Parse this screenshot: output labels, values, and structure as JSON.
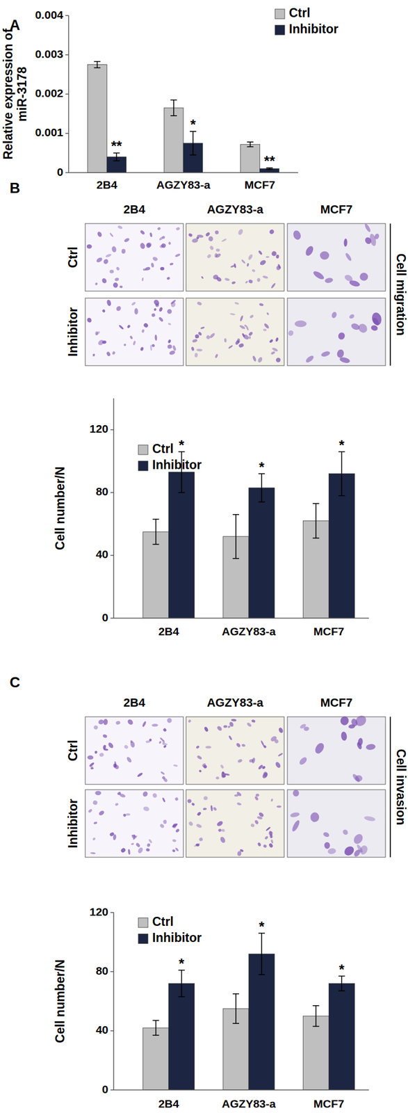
{
  "chart_data": [
    {
      "type": "bar",
      "ylabel": "Relative expression of miR-3178",
      "categories": [
        "2B4",
        "AGZY83-a",
        "MCF7"
      ],
      "series": [
        {
          "name": "Ctrl",
          "color": "#bfbfbf",
          "values": [
            0.00275,
            0.00165,
            0.00072
          ],
          "errors": [
            8e-05,
            0.0002,
            6e-05
          ]
        },
        {
          "name": "Inhibitor",
          "color": "#1c2541",
          "values": [
            0.0004,
            0.00075,
            0.0001
          ],
          "errors": [
            0.0001,
            0.0003,
            2e-05
          ],
          "annotations": [
            "**",
            "*",
            "**"
          ]
        }
      ],
      "ylim": [
        0,
        0.004
      ],
      "yticks": [
        0,
        0.001,
        0.002,
        0.003,
        0.004
      ],
      "grid": false,
      "legend": "top-right"
    },
    {
      "type": "bar",
      "ylabel": "Cell number/N",
      "categories": [
        "2B4",
        "AGZY83-a",
        "MCF7"
      ],
      "series": [
        {
          "name": "Ctrl",
          "color": "#bfbfbf",
          "values": [
            55,
            52,
            62
          ],
          "errors": [
            8,
            14,
            11
          ]
        },
        {
          "name": "Inhibitor",
          "color": "#1c2541",
          "values": [
            93,
            83,
            92
          ],
          "errors": [
            13,
            9,
            14
          ],
          "annotations": [
            "*",
            "*",
            "*"
          ]
        }
      ],
      "ylim": [
        0,
        140
      ],
      "yticks": [
        0,
        40,
        80,
        120
      ],
      "grid": false,
      "legend": "top-left"
    },
    {
      "type": "bar",
      "ylabel": "Cell number/N",
      "categories": [
        "2B4",
        "AGZY83-a",
        "MCF7"
      ],
      "series": [
        {
          "name": "Ctrl",
          "color": "#bfbfbf",
          "values": [
            42,
            55,
            50
          ],
          "errors": [
            5,
            10,
            7
          ]
        },
        {
          "name": "Inhibitor",
          "color": "#1c2541",
          "values": [
            72,
            92,
            72
          ],
          "errors": [
            9,
            14,
            5
          ],
          "annotations": [
            "*",
            "*",
            "*"
          ]
        }
      ],
      "ylim": [
        0,
        120
      ],
      "yticks": [
        0,
        40,
        80,
        120
      ],
      "grid": false,
      "legend": "top-left"
    }
  ],
  "figure": {
    "panel_labels": [
      "A",
      "B",
      "C"
    ],
    "image_grids": [
      {
        "columns": [
          "2B4",
          "AGZY83-a",
          "MCF7"
        ],
        "rows": [
          "Ctrl",
          "Inhibitor"
        ],
        "side_label": "Cell migration"
      },
      {
        "columns": [
          "2B4",
          "AGZY83-a",
          "MCF7"
        ],
        "rows": [
          "Ctrl",
          "Inhibitor"
        ],
        "side_label": "Cell invasion"
      }
    ]
  }
}
